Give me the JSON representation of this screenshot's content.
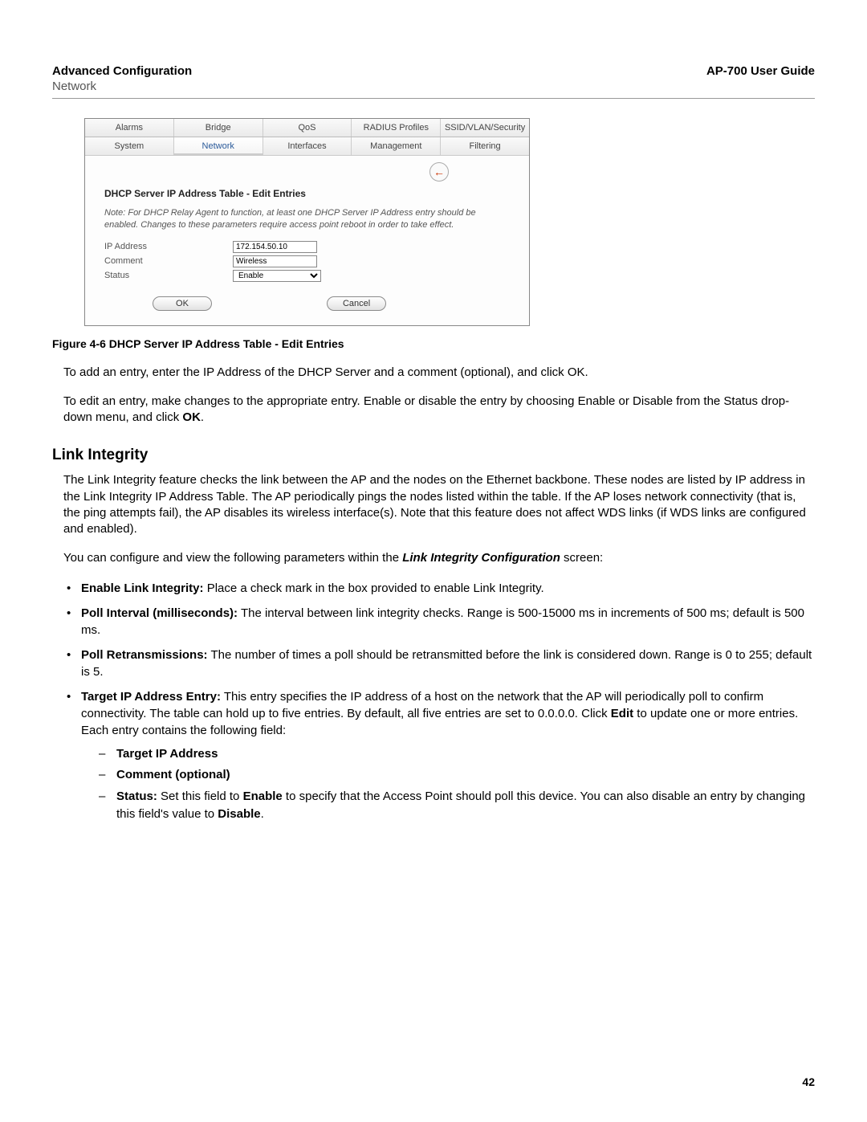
{
  "header": {
    "left_title": "Advanced Configuration",
    "left_sub": "Network",
    "right_title": "AP-700 User Guide"
  },
  "tabs_top": [
    "Alarms",
    "Bridge",
    "QoS",
    "RADIUS Profiles",
    "SSID/VLAN/Security"
  ],
  "tabs_bottom": [
    "System",
    "Network",
    "Interfaces",
    "Management",
    "Filtering"
  ],
  "active_tab": "Network",
  "panel": {
    "title": "DHCP Server IP Address Table - Edit Entries",
    "note": "Note: For DHCP Relay Agent to function, at least one DHCP Server IP Address entry should be enabled. Changes to these parameters require access point reboot in order to take effect.",
    "fields": {
      "ip_label": "IP Address",
      "ip_value": "172.154.50.10",
      "comment_label": "Comment",
      "comment_value": "Wireless",
      "status_label": "Status",
      "status_value": "Enable"
    },
    "buttons": {
      "ok": "OK",
      "cancel": "Cancel"
    }
  },
  "figure_caption": "Figure 4-6 DHCP Server IP Address Table - Edit Entries",
  "para1": "To add an entry, enter the IP Address of the DHCP Server and a comment (optional), and click OK.",
  "para2_a": "To edit an entry, make changes to the appropriate entry. Enable or disable the entry by choosing Enable or Disable from the Status drop-down menu, and click ",
  "para2_b": "OK",
  "para2_c": ".",
  "section_heading": "Link Integrity",
  "para3": "The Link Integrity feature checks the link between the AP and the nodes on the Ethernet backbone. These nodes are listed by IP address in the Link Integrity IP Address Table. The AP periodically pings the nodes listed within the table. If the AP loses network connectivity (that is, the ping attempts fail), the AP disables its wireless interface(s). Note that this feature does not affect WDS links (if WDS links are configured and enabled).",
  "para4_a": "You can configure and view the following parameters within the ",
  "para4_b": "Link Integrity Configuration",
  "para4_c": " screen:",
  "bullets": {
    "b1_bold": "Enable Link Integrity:",
    "b1_rest": " Place a check mark in the box provided to enable Link Integrity.",
    "b2_bold": "Poll Interval (milliseconds):",
    "b2_rest": " The interval between link integrity checks. Range is 500-15000 ms in increments of 500 ms; default is 500 ms.",
    "b3_bold": "Poll Retransmissions:",
    "b3_rest": " The number of times a poll should be retransmitted before the link is considered down. Range is 0 to 255; default is 5.",
    "b4_bold": "Target IP Address Entry:",
    "b4_rest_a": " This entry specifies the IP address of a host on the network that the AP will periodically poll to confirm connectivity. The table can hold up to five entries. By default, all five entries are set to 0.0.0.0. Click ",
    "b4_rest_b": "Edit",
    "b4_rest_c": " to update one or more entries. Each entry contains the following field:"
  },
  "dashes": {
    "d1": "Target IP Address",
    "d2": "Comment (optional)",
    "d3_bold": "Status:",
    "d3_a": " Set this field to ",
    "d3_b": "Enable",
    "d3_c": " to specify that the Access Point should poll this device. You can also disable an entry by changing this field's value to ",
    "d3_d": "Disable",
    "d3_e": "."
  },
  "page_number": "42"
}
